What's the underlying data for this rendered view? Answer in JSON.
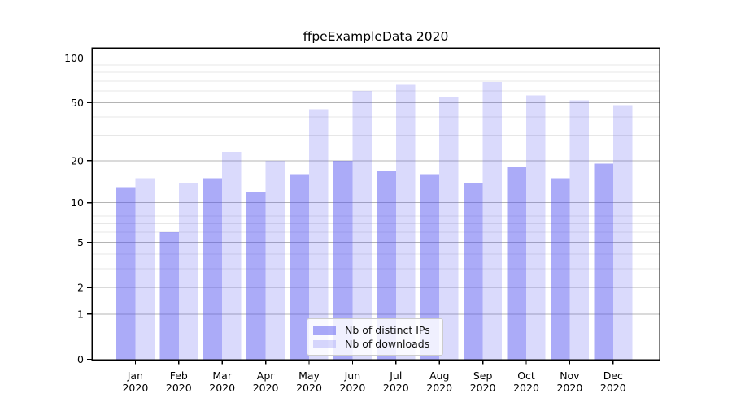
{
  "title": "ffpeExampleData 2020",
  "chart_data": {
    "type": "bar",
    "title": "ffpeExampleData 2020",
    "x_axis": {
      "months": [
        "Jan",
        "Feb",
        "Mar",
        "Apr",
        "May",
        "Jun",
        "Jul",
        "Aug",
        "Sep",
        "Oct",
        "Nov",
        "Dec"
      ],
      "year": "2020"
    },
    "y_axis": {
      "scale": "log1p",
      "major_ticks": [
        100,
        50,
        20,
        10,
        5,
        2,
        1,
        0
      ],
      "minor_gridlines": [
        90,
        80,
        70,
        60,
        40,
        30,
        9,
        8,
        7,
        6,
        4,
        3
      ],
      "top_value": 117
    },
    "series": [
      {
        "key": "ips",
        "name": "Nb of distinct IPs",
        "color": "rgba(80,80,240,0.48)",
        "legend_color": "rgba(80,80,240,0.48)",
        "values": [
          13,
          6,
          15,
          12,
          16,
          20,
          17,
          16,
          14,
          18,
          15,
          19
        ]
      },
      {
        "key": "downloads",
        "name": "Nb of downloads",
        "color": "rgba(80,80,240,0.21)",
        "legend_color": "rgba(80,80,240,0.21)",
        "values": [
          15,
          14,
          23,
          20,
          45,
          60,
          66,
          55,
          69,
          56,
          52,
          48
        ]
      }
    ],
    "legend_position": "lower center",
    "grid": true
  },
  "colors": {
    "background": "#ffffff",
    "axis_frame": "#000000",
    "major_grid": "#b4b4b4",
    "minor_grid": "#e7e7e7",
    "tick_text": "#000000"
  }
}
